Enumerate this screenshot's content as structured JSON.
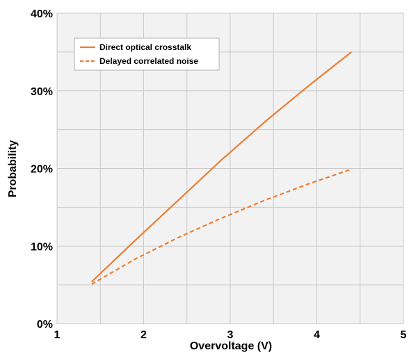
{
  "chart_data": {
    "type": "line",
    "title": "",
    "xlabel": "Overvoltage (V)",
    "ylabel": "Probability",
    "xlim": [
      1,
      5
    ],
    "ylim": [
      0,
      40
    ],
    "xticks": [
      1,
      2,
      3,
      4,
      5
    ],
    "xtick_labels": [
      "1",
      "2",
      "3",
      "4",
      "5"
    ],
    "yticks": [
      0,
      10,
      20,
      30,
      40
    ],
    "ytick_labels": [
      "0%",
      "10%",
      "20%",
      "30%",
      "40%"
    ],
    "x_minor_gridlines": [
      1.5,
      2.5,
      3.5,
      4.5
    ],
    "y_minor_gridlines": [
      5,
      15,
      25,
      35
    ],
    "grid": true,
    "background": "#f2f2f2",
    "grid_color": "#c8c8c8",
    "legend": {
      "position": "top-left"
    },
    "series": [
      {
        "name": "Direct optical crosstalk",
        "style": "solid",
        "color": "#ed7d31",
        "x": [
          1.4,
          1.9,
          2.4,
          2.9,
          3.4,
          3.9,
          4.4
        ],
        "y": [
          5.4,
          10.7,
          15.9,
          21.1,
          26.0,
          30.6,
          35.0
        ]
      },
      {
        "name": "Delayed correlated noise",
        "style": "dashed",
        "color": "#ed7d31",
        "x": [
          1.4,
          1.9,
          2.4,
          2.9,
          3.4,
          3.9,
          4.4
        ],
        "y": [
          5.1,
          8.3,
          11.1,
          13.6,
          15.9,
          18.0,
          19.9
        ]
      }
    ]
  }
}
